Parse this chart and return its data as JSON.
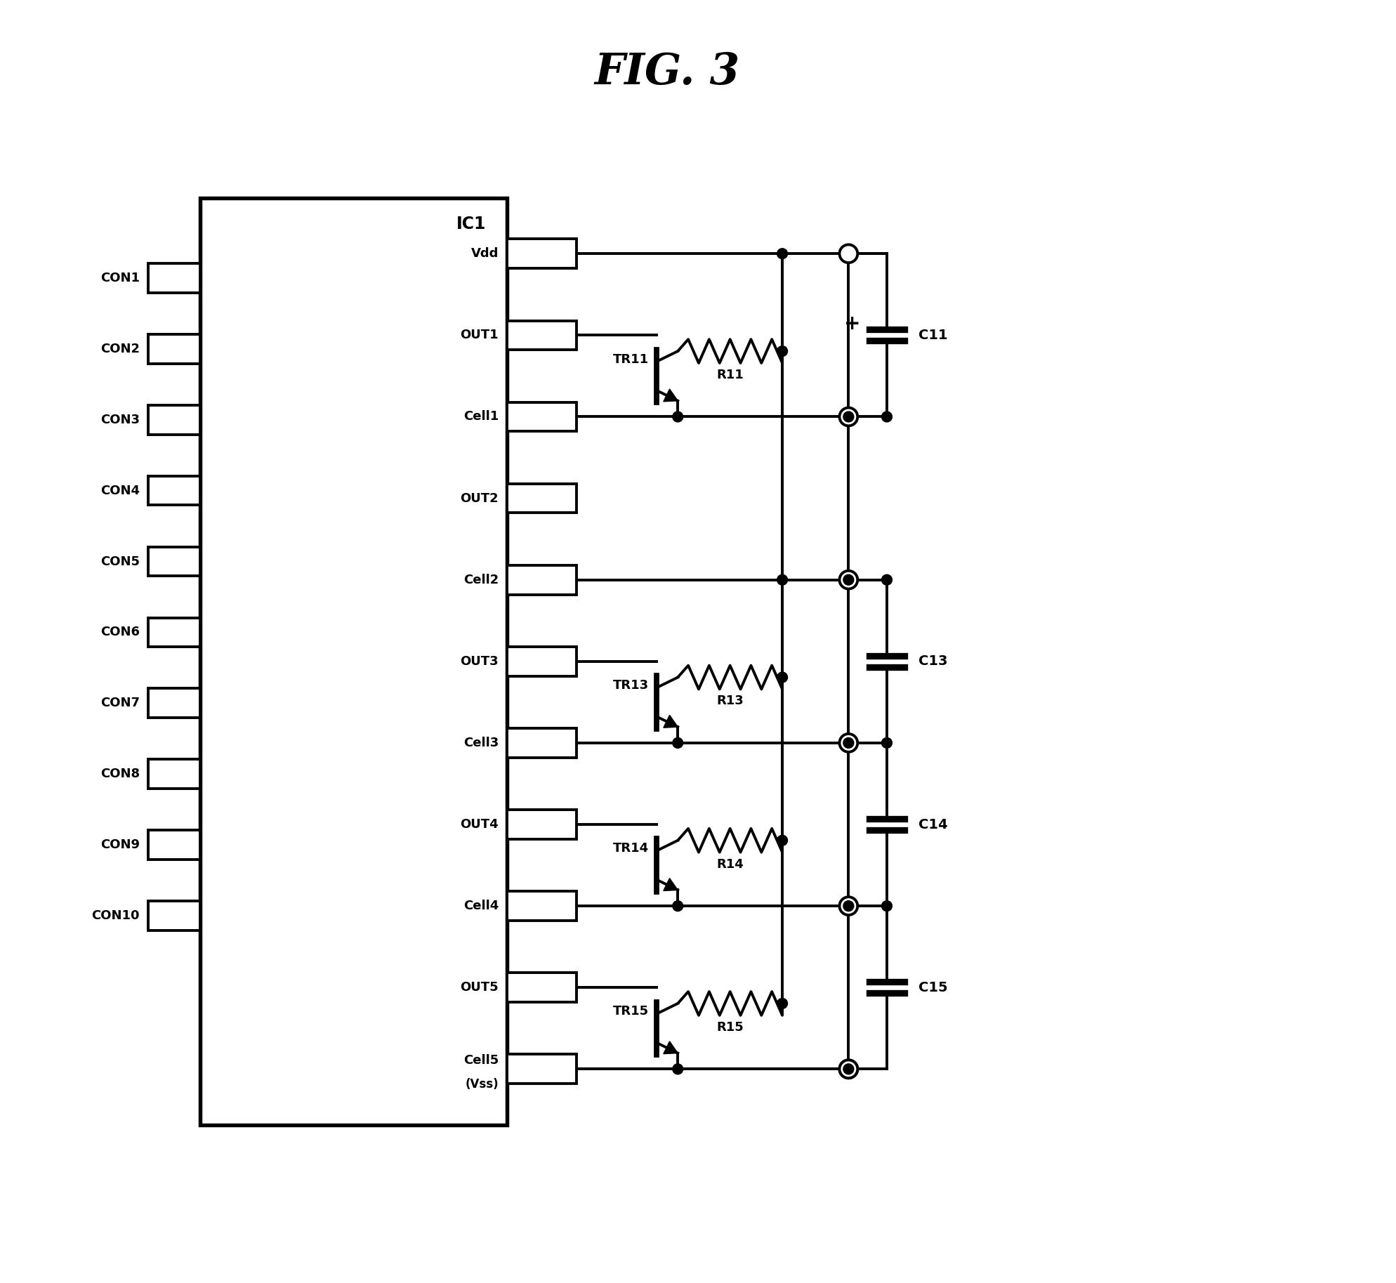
{
  "title": "FIG. 3",
  "title_fontsize": 44,
  "title_fontweight": "bold",
  "bg_color": "#ffffff",
  "line_color": "#000000",
  "lw": 2.8,
  "figsize": [
    19.88,
    18.27
  ],
  "dpi": 100,
  "ic1_label": "IC1",
  "left_pins": [
    "CON1",
    "CON2",
    "CON3",
    "CON4",
    "CON5",
    "CON6",
    "CON7",
    "CON8",
    "CON9",
    "CON10"
  ],
  "right_pins": [
    "Vdd",
    "OUT1",
    "Cell1",
    "OUT2",
    "Cell2",
    "OUT3",
    "Cell3",
    "OUT4",
    "Cell4",
    "OUT5",
    "Cell5"
  ],
  "cell5_sub": "(Vss)"
}
